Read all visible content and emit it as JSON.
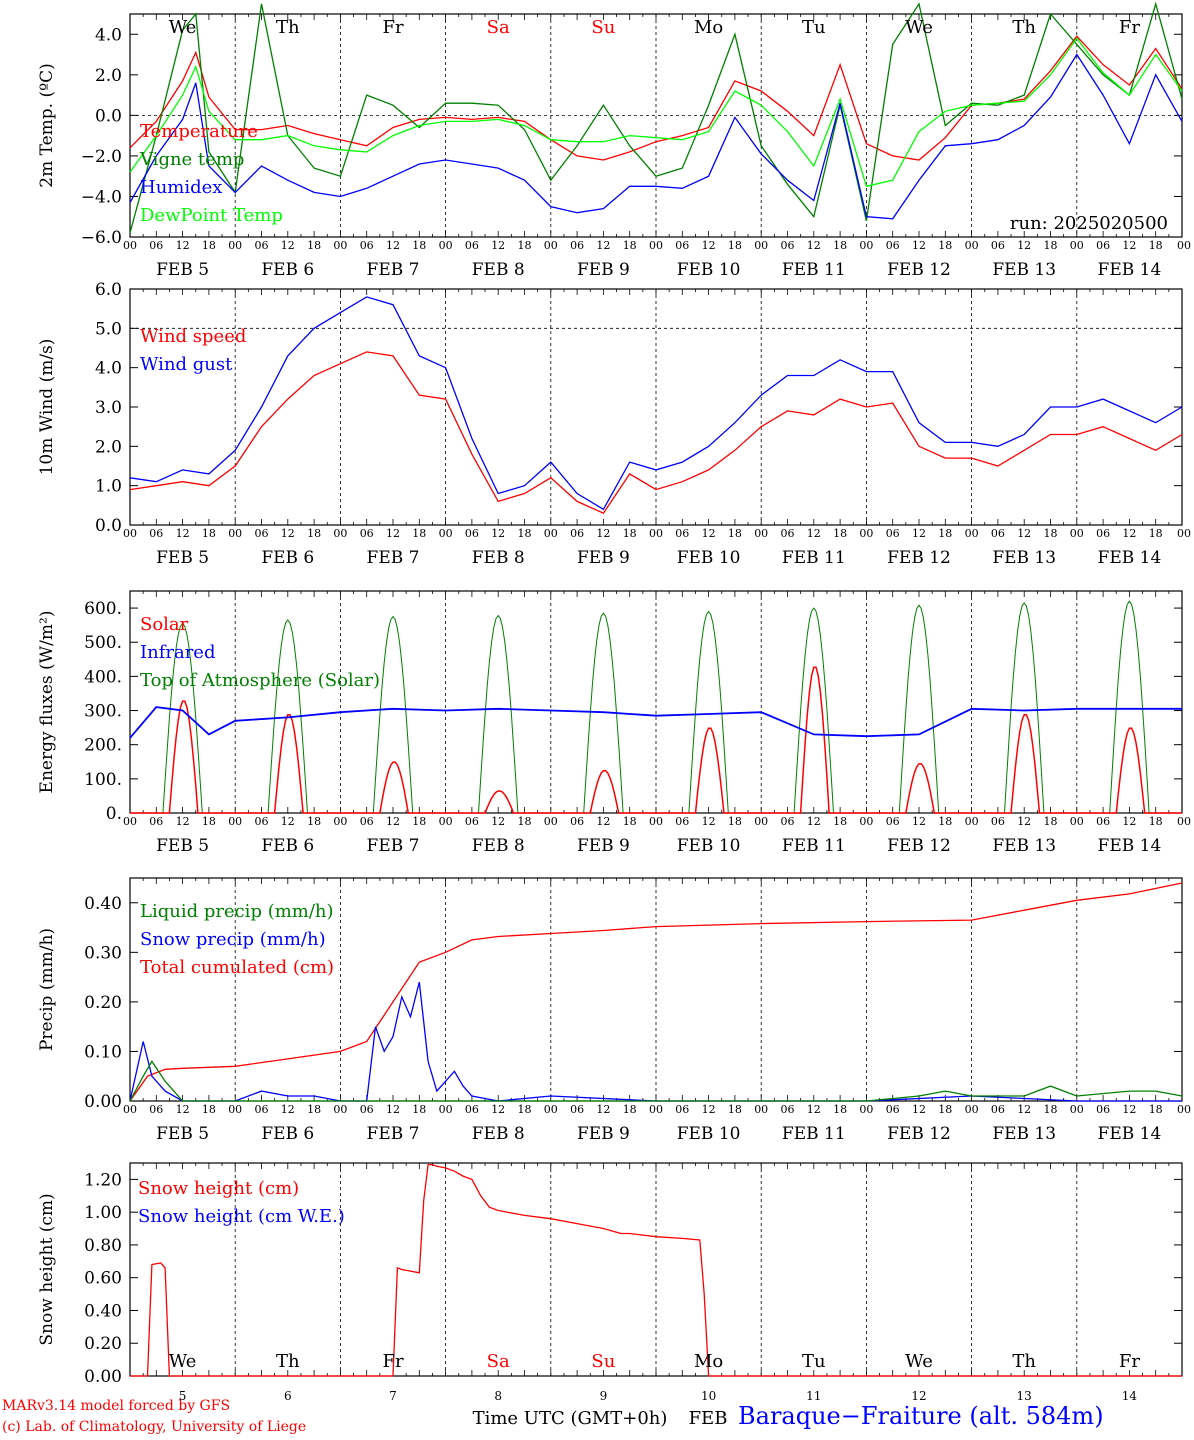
{
  "chart_data": [
    {
      "type": "line",
      "ylabel": "2m Temp. (ºC)",
      "ylim": [
        -6,
        5
      ],
      "yticks": [
        "4.0",
        "2.0",
        "0.0",
        "−2.0",
        "−4.0",
        "−6.0"
      ],
      "x_unit": "hours since 00 UTC FEB 5",
      "legend": [
        "Temperature",
        "Vigne temp",
        "Humidex",
        "DewPoint Temp"
      ],
      "legend_placement": "left",
      "annotation": "run: 2025020500",
      "reference_line": 0,
      "day_labels": [
        "We",
        "Th",
        "Fr",
        "Sa",
        "Su",
        "Mo",
        "Tu",
        "We",
        "Th",
        "Fr"
      ],
      "series": [
        {
          "name": "Temperature",
          "color": "#ff0000",
          "x": [
            0,
            6,
            12,
            15,
            18,
            24,
            30,
            36,
            42,
            48,
            54,
            60,
            66,
            72,
            78,
            84,
            90,
            96,
            102,
            108,
            114,
            120,
            126,
            132,
            138,
            144,
            150,
            156,
            162,
            168,
            174,
            180,
            186,
            192,
            198,
            204,
            210,
            216,
            222,
            228,
            234,
            240
          ],
          "y": [
            -1.6,
            -0.3,
            1.7,
            3.1,
            0.9,
            -0.7,
            -0.7,
            -0.5,
            -0.9,
            -1.2,
            -1.5,
            -0.6,
            -0.2,
            -0.1,
            -0.2,
            -0.1,
            -0.3,
            -1.2,
            -2.0,
            -2.2,
            -1.8,
            -1.3,
            -1.0,
            -0.6,
            1.7,
            1.2,
            0.2,
            -1.0,
            2.5,
            -1.4,
            -2.0,
            -2.2,
            -1.1,
            0.5,
            0.6,
            0.8,
            2.2,
            3.9,
            2.5,
            1.5,
            3.3,
            1.3
          ]
        },
        {
          "name": "Vigne temp",
          "color": "#008000",
          "x": [
            0,
            6,
            12,
            15,
            18,
            24,
            30,
            36,
            42,
            48,
            54,
            60,
            66,
            72,
            78,
            84,
            90,
            96,
            102,
            108,
            114,
            120,
            126,
            132,
            138,
            144,
            150,
            156,
            162,
            168,
            174,
            180,
            186,
            192,
            198,
            204,
            210,
            216,
            222,
            228,
            234,
            240
          ],
          "y": [
            -5.8,
            -1.0,
            4.2,
            5.0,
            -1.8,
            -3.8,
            5.5,
            -1.0,
            -2.6,
            -3.0,
            1.0,
            0.5,
            -0.6,
            0.6,
            0.6,
            0.5,
            -0.7,
            -3.2,
            -1.5,
            0.5,
            -1.5,
            -3.0,
            -2.6,
            0.5,
            4.0,
            -1.5,
            -3.4,
            -5.0,
            0.5,
            -5.2,
            3.5,
            5.5,
            -0.5,
            0.6,
            0.5,
            1.0,
            5.0,
            3.5,
            2.0,
            1.0,
            5.5,
            0.8
          ]
        },
        {
          "name": "Humidex",
          "color": "#0000ff",
          "x": [
            0,
            6,
            12,
            15,
            18,
            24,
            30,
            36,
            42,
            48,
            54,
            60,
            66,
            72,
            78,
            84,
            90,
            96,
            102,
            108,
            114,
            120,
            126,
            132,
            138,
            144,
            150,
            156,
            162,
            168,
            174,
            180,
            186,
            192,
            198,
            204,
            210,
            216,
            222,
            228,
            234,
            240
          ],
          "y": [
            -4.3,
            -2.0,
            -0.2,
            1.6,
            -2.5,
            -3.8,
            -2.5,
            -3.2,
            -3.8,
            -4.0,
            -3.6,
            -3.0,
            -2.4,
            -2.2,
            -2.4,
            -2.6,
            -3.2,
            -4.5,
            -4.8,
            -4.6,
            -3.5,
            -3.5,
            -3.6,
            -3.0,
            -0.1,
            -1.9,
            -3.2,
            -4.2,
            0.6,
            -5.0,
            -5.1,
            -3.2,
            -1.5,
            -1.4,
            -1.2,
            -0.5,
            0.9,
            3.0,
            1.0,
            -1.4,
            2.0,
            -0.3
          ]
        },
        {
          "name": "DewPoint Temp",
          "color": "#00ff00",
          "x": [
            0,
            6,
            12,
            15,
            18,
            24,
            30,
            36,
            42,
            48,
            54,
            60,
            66,
            72,
            78,
            84,
            90,
            96,
            102,
            108,
            114,
            120,
            126,
            132,
            138,
            144,
            150,
            156,
            162,
            168,
            174,
            180,
            186,
            192,
            198,
            204,
            210,
            216,
            222,
            228,
            234,
            240
          ],
          "y": [
            -2.8,
            -1.0,
            1.0,
            2.4,
            0.2,
            -1.2,
            -1.2,
            -1.0,
            -1.5,
            -1.7,
            -1.8,
            -1.0,
            -0.5,
            -0.3,
            -0.3,
            -0.2,
            -0.5,
            -1.2,
            -1.3,
            -1.3,
            -1.0,
            -1.1,
            -1.2,
            -0.8,
            1.2,
            0.5,
            -0.8,
            -2.5,
            0.8,
            -3.5,
            -3.2,
            -0.8,
            0.2,
            0.5,
            0.6,
            0.7,
            2.0,
            3.8,
            2.1,
            1.0,
            3.0,
            1.2
          ]
        }
      ]
    },
    {
      "type": "line",
      "ylabel": "10m Wind (m/s)",
      "ylim": [
        0,
        6
      ],
      "yticks": [
        "6.0",
        "5.0",
        "4.0",
        "3.0",
        "2.0",
        "1.0",
        "0.0"
      ],
      "reference_line": 5,
      "legend": [
        "Wind speed",
        "Wind gust"
      ],
      "series": [
        {
          "name": "Wind speed",
          "color": "#ff0000",
          "x": [
            0,
            6,
            12,
            18,
            24,
            30,
            36,
            42,
            48,
            54,
            60,
            66,
            72,
            78,
            84,
            90,
            96,
            102,
            108,
            114,
            120,
            126,
            132,
            138,
            144,
            150,
            156,
            162,
            168,
            174,
            180,
            186,
            192,
            198,
            204,
            210,
            216,
            222,
            228,
            234,
            240
          ],
          "y": [
            0.9,
            1.0,
            1.1,
            1.0,
            1.5,
            2.5,
            3.2,
            3.8,
            4.1,
            4.4,
            4.3,
            3.3,
            3.2,
            1.8,
            0.6,
            0.8,
            1.2,
            0.6,
            0.3,
            1.3,
            0.9,
            1.1,
            1.4,
            1.9,
            2.5,
            2.9,
            2.8,
            3.2,
            3.0,
            3.1,
            2.0,
            1.7,
            1.7,
            1.5,
            1.9,
            2.3,
            2.3,
            2.5,
            2.2,
            1.9,
            2.3
          ]
        },
        {
          "name": "Wind gust",
          "color": "#0000ff",
          "x": [
            0,
            6,
            12,
            18,
            24,
            30,
            36,
            42,
            48,
            54,
            60,
            66,
            72,
            78,
            84,
            90,
            96,
            102,
            108,
            114,
            120,
            126,
            132,
            138,
            144,
            150,
            156,
            162,
            168,
            174,
            180,
            186,
            192,
            198,
            204,
            210,
            216,
            222,
            228,
            234,
            240
          ],
          "y": [
            1.2,
            1.1,
            1.4,
            1.3,
            1.9,
            3.0,
            4.3,
            5.0,
            5.4,
            5.8,
            5.6,
            4.3,
            4.0,
            2.2,
            0.8,
            1.0,
            1.6,
            0.8,
            0.4,
            1.6,
            1.4,
            1.6,
            2.0,
            2.6,
            3.3,
            3.8,
            3.8,
            4.2,
            3.9,
            3.9,
            2.6,
            2.1,
            2.1,
            2.0,
            2.3,
            3.0,
            3.0,
            3.2,
            2.9,
            2.6,
            3.0
          ]
        }
      ]
    },
    {
      "type": "line",
      "ylabel": "Energy fluxes (W/m²)",
      "ylim": [
        0,
        650
      ],
      "yticks": [
        "600.",
        "500.",
        "400.",
        "300.",
        "200.",
        "100.",
        "0."
      ],
      "legend": [
        "Solar",
        "Infrared",
        "Top of Atmosphere (Solar)"
      ],
      "daily_solar_peak": [
        330,
        290,
        150,
        65,
        125,
        250,
        430,
        145,
        290,
        250
      ],
      "daily_toa_peak": [
        555,
        565,
        575,
        578,
        585,
        590,
        600,
        608,
        615,
        620
      ],
      "series": [
        {
          "name": "Infrared",
          "color": "#0000ff",
          "x": [
            0,
            6,
            12,
            18,
            24,
            36,
            48,
            60,
            72,
            84,
            96,
            108,
            120,
            132,
            144,
            156,
            168,
            180,
            192,
            204,
            216,
            228,
            240
          ],
          "y": [
            220,
            310,
            300,
            230,
            270,
            280,
            295,
            305,
            300,
            305,
            300,
            295,
            285,
            290,
            295,
            230,
            225,
            230,
            305,
            300,
            305,
            305,
            305
          ]
        }
      ]
    },
    {
      "type": "line",
      "ylabel": "Precip (mm/h)",
      "ylim": [
        0,
        0.45
      ],
      "yticks": [
        "0.40",
        "0.30",
        "0.20",
        "0.10",
        "0.00"
      ],
      "legend": [
        "Liquid precip (mm/h)",
        "Snow precip (mm/h)",
        "Total cumulated (cm)"
      ],
      "series": [
        {
          "name": "Total cumulated (cm)",
          "color": "#ff0000",
          "x": [
            0,
            4,
            8,
            12,
            24,
            36,
            48,
            54,
            60,
            66,
            72,
            78,
            84,
            96,
            108,
            120,
            144,
            168,
            192,
            204,
            216,
            228,
            240
          ],
          "y": [
            0.0,
            0.05,
            0.064,
            0.066,
            0.07,
            0.085,
            0.1,
            0.12,
            0.2,
            0.28,
            0.3,
            0.325,
            0.332,
            0.338,
            0.344,
            0.352,
            0.358,
            0.362,
            0.365,
            0.385,
            0.405,
            0.418,
            0.44
          ]
        },
        {
          "name": "Snow precip (mm/h)",
          "color": "#0000ff",
          "x": [
            0,
            3,
            5,
            8,
            12,
            24,
            30,
            36,
            42,
            48,
            54,
            56,
            58,
            60,
            62,
            64,
            66,
            68,
            70,
            72,
            74,
            76,
            78,
            84,
            96,
            120,
            144,
            168,
            192,
            216,
            240
          ],
          "y": [
            0.0,
            0.12,
            0.05,
            0.02,
            0.0,
            0.0,
            0.02,
            0.01,
            0.01,
            0.0,
            0.0,
            0.15,
            0.1,
            0.13,
            0.21,
            0.17,
            0.24,
            0.08,
            0.02,
            0.04,
            0.06,
            0.03,
            0.01,
            0.0,
            0.01,
            0.0,
            0.0,
            0.0,
            0.01,
            0.0,
            0.0
          ]
        },
        {
          "name": "Liquid precip (mm/h)",
          "color": "#008000",
          "x": [
            0,
            3,
            5,
            8,
            12,
            24,
            72,
            120,
            168,
            180,
            186,
            192,
            204,
            210,
            216,
            228,
            234,
            240
          ],
          "y": [
            0.0,
            0.05,
            0.08,
            0.04,
            0.0,
            0.0,
            0.0,
            0.0,
            0.0,
            0.01,
            0.02,
            0.01,
            0.01,
            0.03,
            0.01,
            0.02,
            0.02,
            0.01
          ]
        }
      ]
    },
    {
      "type": "line",
      "ylabel": "Snow height (cm)",
      "ylim": [
        0,
        1.3
      ],
      "yticks": [
        "1.20",
        "1.00",
        "0.80",
        "0.60",
        "0.40",
        "0.20",
        "0.00"
      ],
      "legend": [
        "Snow height (cm)",
        "Snow height (cm W.E.)"
      ],
      "xlabel": "Time UTC (GMT+0h)",
      "x_day_numbers": [
        "5",
        "6",
        "7",
        "8",
        "9",
        "10",
        "11",
        "12",
        "13",
        "14"
      ],
      "day_labels": [
        "We",
        "Th",
        "Fr",
        "Sa",
        "Su",
        "Mo",
        "Tu",
        "We",
        "Th",
        "Fr"
      ],
      "series": [
        {
          "name": "Snow height (cm)",
          "color": "#ff0000",
          "x": [
            0,
            4,
            5,
            7,
            8,
            9,
            60,
            61,
            62,
            64,
            66,
            67,
            68,
            69,
            70,
            72,
            74,
            76,
            78,
            80,
            82,
            84,
            90,
            96,
            102,
            108,
            112,
            114,
            120,
            126,
            130,
            131,
            132,
            240
          ],
          "y": [
            0,
            0,
            0.68,
            0.69,
            0.66,
            0,
            0,
            0.66,
            0.65,
            0.64,
            0.63,
            1.07,
            1.29,
            1.29,
            1.28,
            1.27,
            1.25,
            1.22,
            1.2,
            1.1,
            1.03,
            1.01,
            0.98,
            0.96,
            0.93,
            0.9,
            0.87,
            0.87,
            0.85,
            0.84,
            0.83,
            0.5,
            0,
            0
          ]
        }
      ]
    }
  ],
  "x_axis": {
    "hour_ticks": [
      "00",
      "06",
      "12",
      "18"
    ],
    "dates": [
      "FEB  5",
      "FEB  6",
      "FEB  7",
      "FEB  8",
      "FEB  9",
      "FEB 10",
      "FEB 11",
      "FEB 12",
      "FEB 13",
      "FEB 14"
    ],
    "end_label": "00",
    "bottom_month": "FEB"
  },
  "footer": {
    "credit_line1": "MARv3.14 model forced by GFS",
    "credit_line2": "(c) Lab. of Climatology, University of Liege",
    "station": "Baraque−Fraiture (alt. 584m)"
  },
  "colors": {
    "weekend": "#ff0000",
    "weekday": "#000000",
    "red": "#ff0000",
    "green": "#008000",
    "blue": "#0000ff",
    "lime": "#00ff00"
  }
}
